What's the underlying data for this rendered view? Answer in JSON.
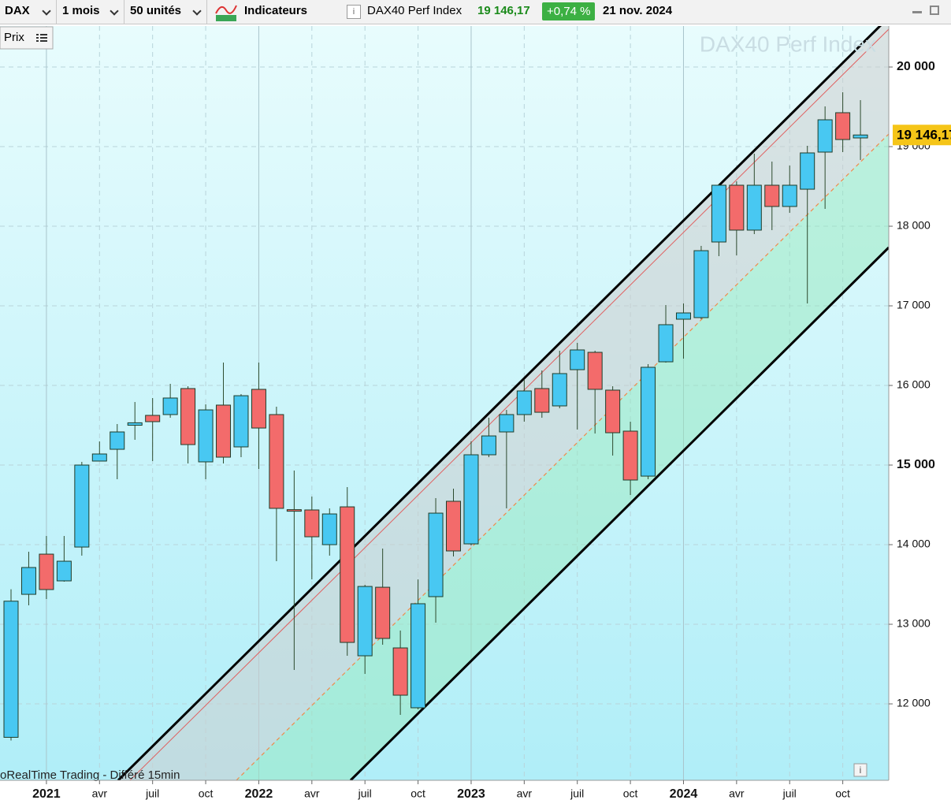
{
  "toolbar": {
    "symbol": "DAX",
    "period": "1 mois",
    "units": "50 unités",
    "indicators": "Indicateurs",
    "instrument": "DAX40 Perf Index",
    "price": "19 146,17",
    "change": "+0,74 %",
    "date": "21 nov. 2024"
  },
  "chart_data": {
    "type": "candlestick",
    "title": "DAX40 Perf Index",
    "y_axis_button": "Prix",
    "footer": "oRealTime Trading - Différé 15min",
    "categories": [
      null,
      null,
      "2021",
      null,
      null,
      "avr",
      null,
      null,
      "juil",
      null,
      null,
      "oct",
      null,
      null,
      "2022",
      null,
      null,
      "avr",
      null,
      null,
      "juil",
      null,
      null,
      "oct",
      null,
      null,
      "2023",
      null,
      null,
      "avr",
      null,
      null,
      "juil",
      null,
      null,
      "oct",
      null,
      null,
      "2024",
      null,
      null,
      "avr",
      null,
      null,
      "juil",
      null,
      null,
      "oct",
      null
    ],
    "open": [
      11580,
      13376,
      13881,
      13545,
      13970,
      15050,
      15198,
      15500,
      15624,
      15634,
      15961,
      15040,
      15753,
      15228,
      15951,
      15634,
      14440,
      14436,
      14000,
      14475,
      12604,
      13465,
      12703,
      11951,
      13347,
      14545,
      14010,
      15129,
      15416,
      15634,
      15961,
      15743,
      16198,
      16416,
      15941,
      15426,
      14861,
      16297,
      16832,
      16852,
      17802,
      18515,
      17951,
      18515,
      18248,
      18465,
      18931,
      19426,
      19109
    ],
    "high": [
      13440,
      13911,
      14109,
      14109,
      15040,
      15297,
      15515,
      15792,
      15842,
      16020,
      15990,
      15763,
      16287,
      15891,
      16287,
      15733,
      14931,
      14604,
      14456,
      14723,
      13495,
      13951,
      12921,
      13564,
      14584,
      14703,
      15297,
      15594,
      15693,
      16069,
      16188,
      16436,
      16535,
      16436,
      15990,
      15545,
      16267,
      17010,
      17030,
      17753,
      18535,
      18564,
      18911,
      18812,
      18762,
      19010,
      19505,
      19683,
      19584
    ],
    "low": [
      11540,
      13238,
      13317,
      13535,
      13862,
      15050,
      14822,
      15317,
      15050,
      15594,
      15020,
      14822,
      15020,
      15099,
      14951,
      13792,
      12426,
      13564,
      13862,
      12604,
      12376,
      12743,
      11862,
      11931,
      13020,
      13852,
      13990,
      15099,
      14456,
      15545,
      15594,
      15713,
      15446,
      15396,
      15119,
      14624,
      14822,
      16287,
      16337,
      16832,
      17624,
      17634,
      17901,
      17951,
      18168,
      17030,
      18218,
      18931,
      18832
    ],
    "close": [
      13290,
      13713,
      13436,
      13792,
      15000,
      15139,
      15416,
      15531,
      15545,
      15842,
      15257,
      15693,
      15099,
      15871,
      15465,
      14456,
      14420,
      14099,
      14386,
      12772,
      13475,
      12822,
      12109,
      13258,
      14396,
      13921,
      15129,
      15366,
      15634,
      15931,
      15663,
      16149,
      16446,
      15951,
      15406,
      14812,
      16228,
      16763,
      16911,
      17693,
      18515,
      17951,
      18515,
      18248,
      18515,
      18921,
      19337,
      19089,
      19146.17
    ],
    "up_color": "#48c8f2",
    "down_color": "#f36b6b",
    "ylim": [
      11040,
      20515
    ],
    "yticks": [
      {
        "value": 12000,
        "label": "12 000"
      },
      {
        "value": 13000,
        "label": "13 000"
      },
      {
        "value": 14000,
        "label": "14 000"
      },
      {
        "value": 15000,
        "label": "15 000"
      },
      {
        "value": 16000,
        "label": "16 000"
      },
      {
        "value": 17000,
        "label": "17 000"
      },
      {
        "value": 18000,
        "label": "18 000"
      },
      {
        "value": 19000,
        "label": "19 000"
      },
      {
        "value": 20000,
        "label": "20 000"
      }
    ],
    "grid": true
  }
}
